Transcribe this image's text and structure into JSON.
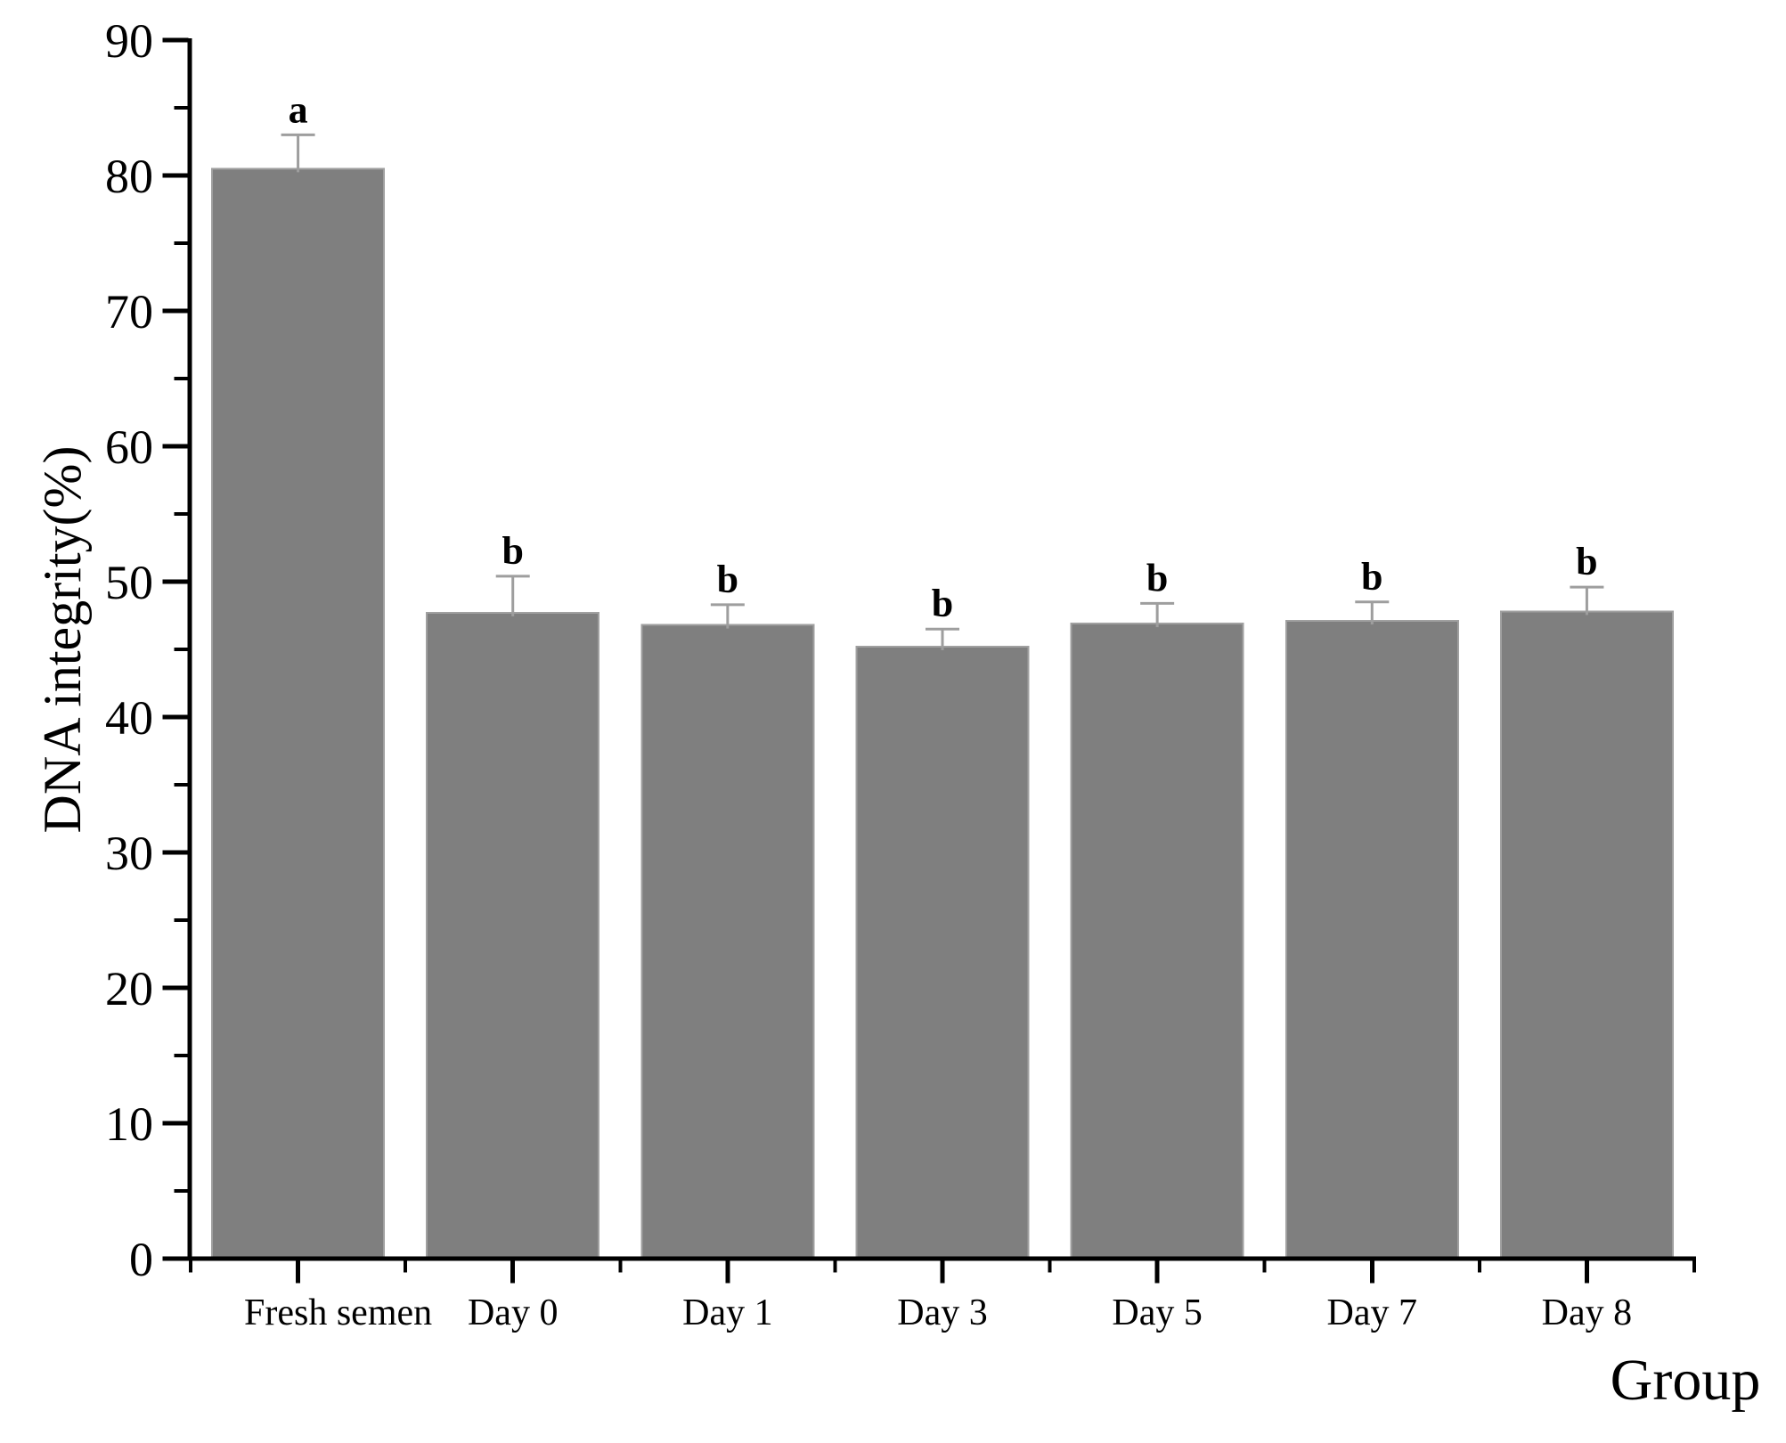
{
  "chart_data": {
    "type": "bar",
    "title": "",
    "xlabel": "Group",
    "ylabel": "DNA integrity(%)",
    "categories": [
      "Fresh semen",
      "Day 0",
      "Day 1",
      "Day 3",
      "Day 5",
      "Day 7",
      "Day 8"
    ],
    "series": [
      {
        "name": "DNA integrity",
        "values": [
          80.5,
          47.7,
          46.8,
          45.2,
          46.9,
          47.1,
          47.8
        ],
        "errors_plus": [
          2.5,
          2.7,
          1.5,
          1.3,
          1.5,
          1.4,
          1.8
        ],
        "sig_letters": [
          "a",
          "b",
          "b",
          "b",
          "b",
          "b",
          "b"
        ]
      }
    ],
    "ylim": [
      0,
      90
    ],
    "ytick_major_step": 10,
    "ytick_minor_step": 5,
    "ytick_labels": [
      "0",
      "10",
      "20",
      "30",
      "40",
      "50",
      "60",
      "70",
      "80",
      "90"
    ],
    "grid": "off",
    "legend": "none",
    "colors": {
      "bar_fill": "#7f7f7f",
      "bar_edge": "#a0a0a0",
      "error_bar": "#9e9e9e",
      "axis": "#000000",
      "text": "#000000",
      "background": "#ffffff"
    }
  }
}
